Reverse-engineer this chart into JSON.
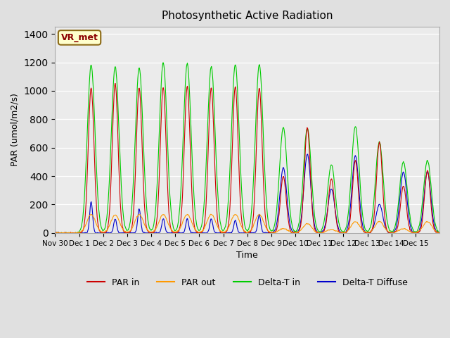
{
  "title": "Photosynthetic Active Radiation",
  "ylabel": "PAR (umol/m2/s)",
  "xlabel": "Time",
  "label_text": "VR_met",
  "ylim": [
    0,
    1450
  ],
  "legend_labels": [
    "PAR in",
    "PAR out",
    "Delta-T in",
    "Delta-T Diffuse"
  ],
  "legend_colors": [
    "#cc0000",
    "#ff9900",
    "#00cc00",
    "#0000cc"
  ],
  "bg_color": "#e0e0e0",
  "plot_bg": "#ebebeb",
  "x_tick_labels": [
    "Nov 30",
    "Dec 1",
    "Dec 2",
    "Dec 3",
    "Dec 4",
    "Dec 5",
    "Dec 6",
    "Dec 7",
    "Dec 8",
    "Dec 9",
    "Dec 10",
    "Dec 11",
    "Dec 12",
    "Dec 13",
    "Dec 14",
    "Dec 15"
  ],
  "n_days": 16,
  "day_peaks_par_in": [
    1020,
    1050,
    1020,
    1025,
    1035,
    1020,
    1030,
    1020,
    400,
    740,
    380,
    510,
    640,
    330,
    440
  ],
  "day_peaks_par_out": [
    130,
    125,
    130,
    130,
    130,
    130,
    130,
    130,
    30,
    65,
    25,
    80,
    80,
    30,
    80
  ],
  "day_peaks_delta_in": [
    1180,
    1170,
    1160,
    1200,
    1190,
    1170,
    1185,
    1185,
    740,
    740,
    480,
    750,
    640,
    500,
    510
  ],
  "day_peaks_delta_diff": [
    220,
    100,
    170,
    100,
    100,
    100,
    90,
    130,
    460,
    555,
    310,
    545,
    200,
    430,
    430
  ]
}
